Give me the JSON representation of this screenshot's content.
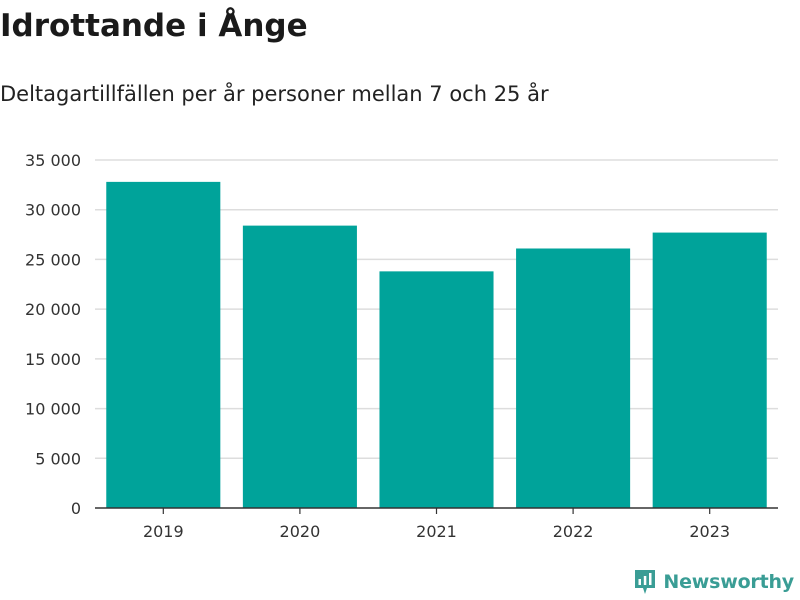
{
  "header": {
    "title": "Idrottande i Ånge",
    "subtitle": "Deltagartillfällen per år personer mellan 7 och 25 år"
  },
  "branding": {
    "logo_text": "Newsworthy",
    "logo_color": "#3a9d95"
  },
  "chart_data": {
    "type": "bar",
    "categories": [
      "2019",
      "2020",
      "2021",
      "2022",
      "2023"
    ],
    "values": [
      32800,
      28400,
      23800,
      26100,
      27700
    ],
    "ylim": [
      0,
      35000
    ],
    "y_ticks": [
      0,
      5000,
      10000,
      15000,
      20000,
      25000,
      30000,
      35000
    ],
    "y_tick_labels": [
      "0",
      "5 000",
      "10 000",
      "15 000",
      "20 000",
      "25 000",
      "30 000",
      "35 000"
    ],
    "grid": true,
    "bar_color": "#00a39a",
    "grid_color": "#dddddd",
    "axis_color": "#333333"
  }
}
